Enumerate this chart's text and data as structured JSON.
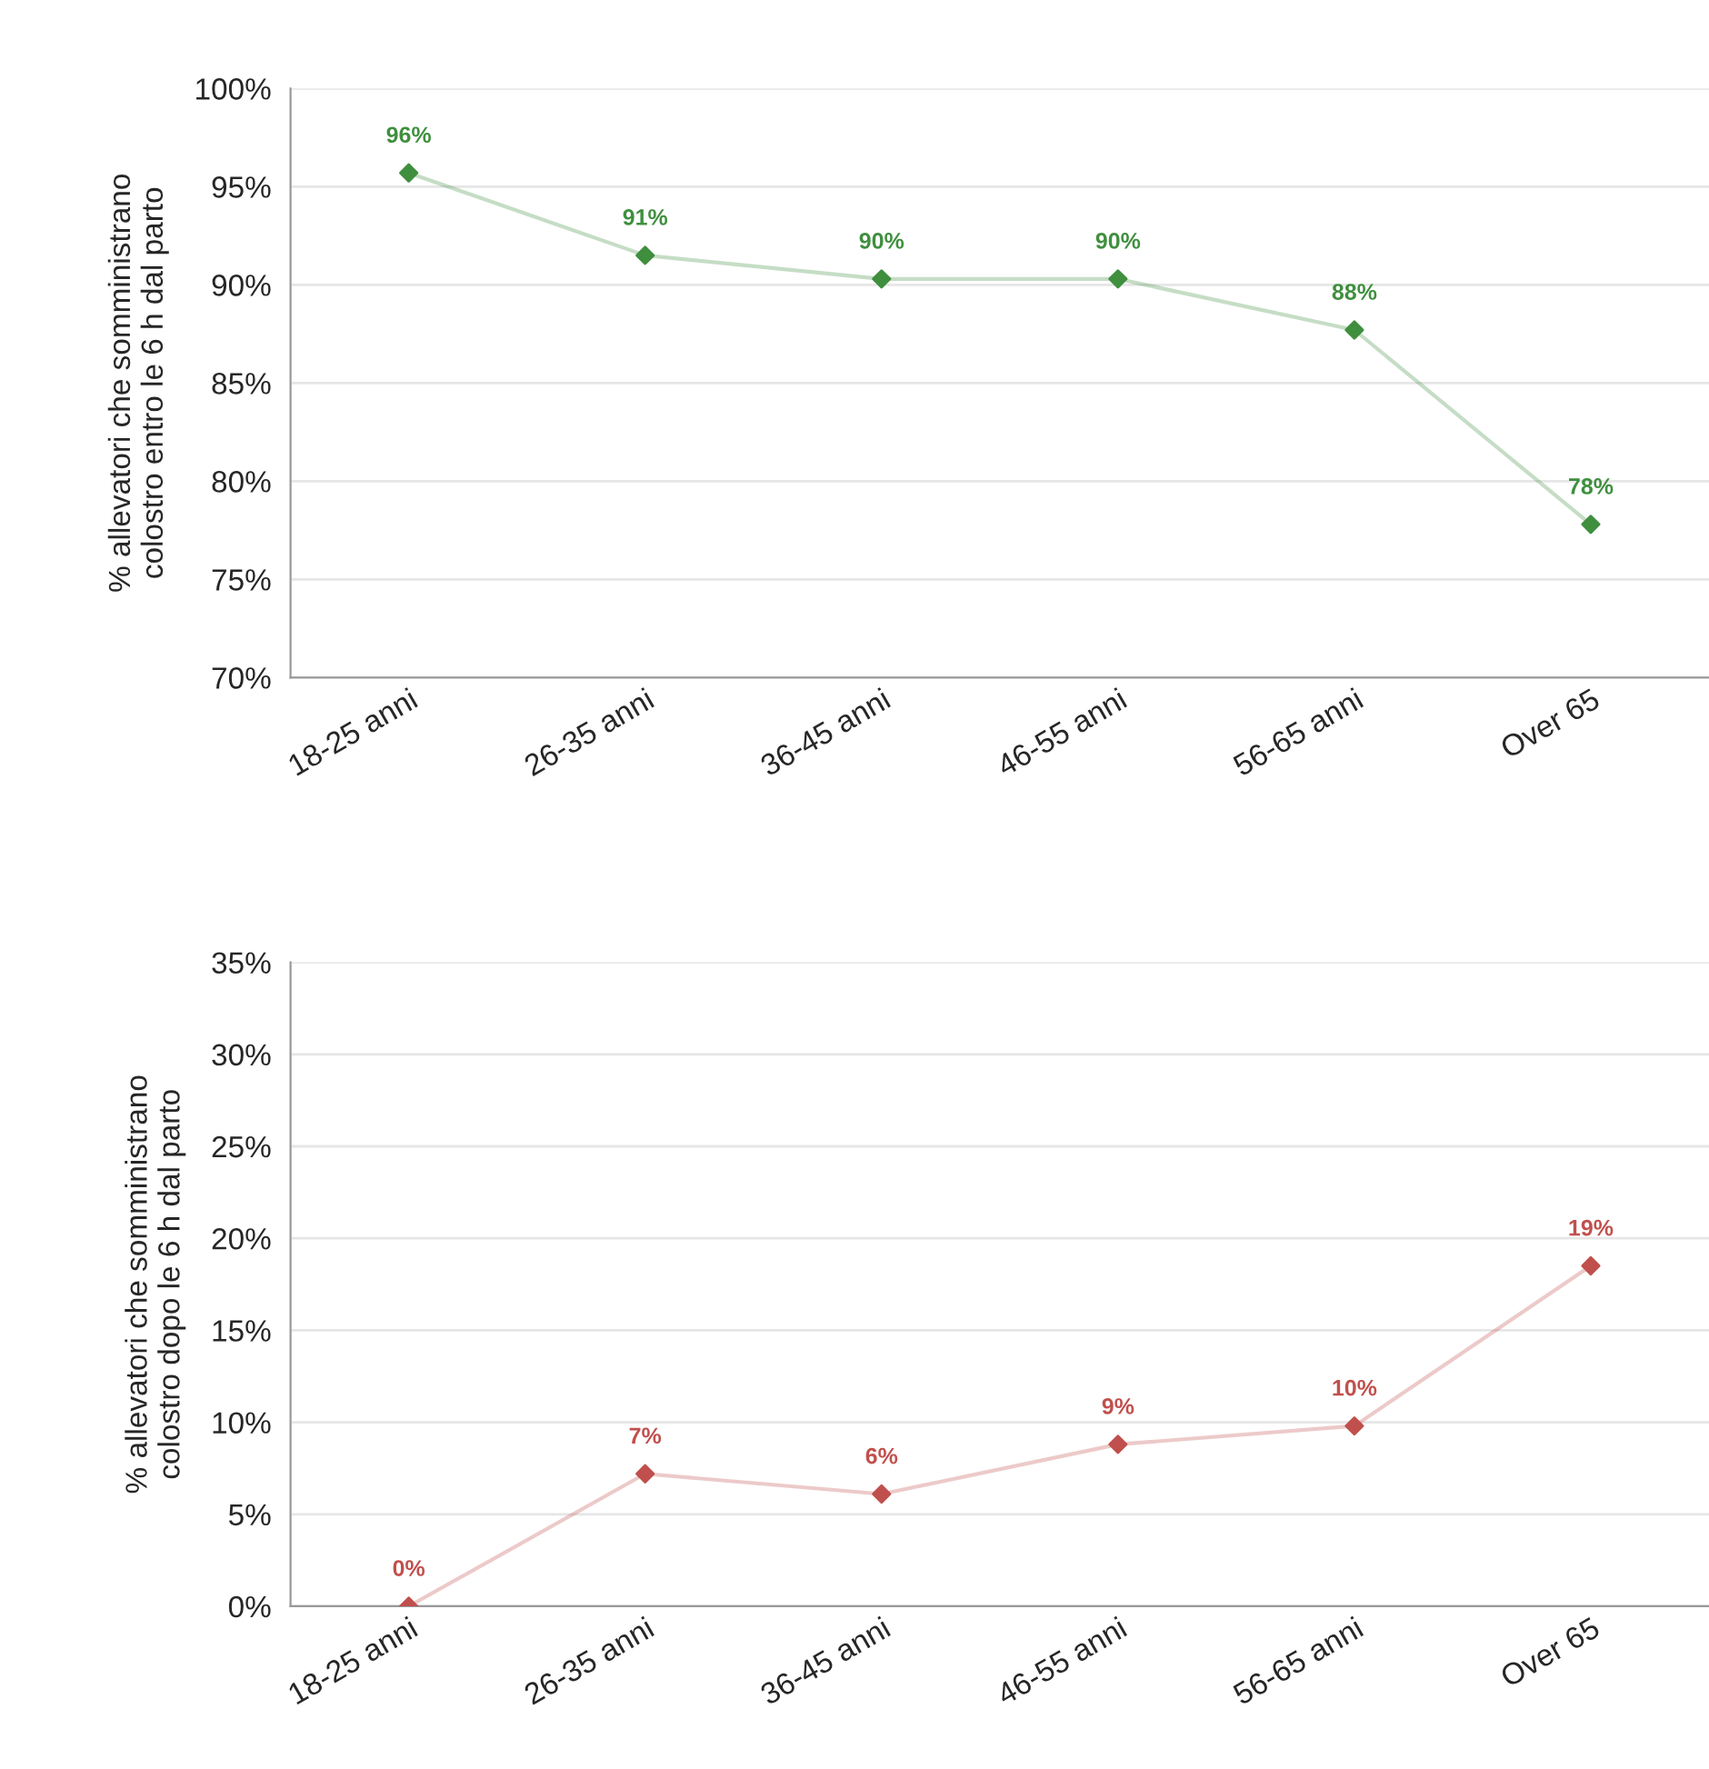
{
  "chart_data": [
    {
      "type": "line",
      "ylabel": "% allevatori che somministrano\ncolostro entro le 6 h dal parto",
      "categories": [
        "18-25 anni",
        "26-35 anni",
        "36-45 anni",
        "46-55 anni",
        "56-65 anni",
        "Over 65"
      ],
      "series": [
        {
          "color": "#3f8f3f",
          "values": [
            95.7,
            91.5,
            90.3,
            90.3,
            87.7,
            77.8
          ],
          "value_labels": [
            "96%",
            "91%",
            "90%",
            "90%",
            "88%",
            "78%"
          ]
        }
      ],
      "ylim": [
        70,
        100
      ],
      "yticks": [
        {
          "value": 70,
          "label": "70%"
        },
        {
          "value": 75,
          "label": "75%"
        },
        {
          "value": 80,
          "label": "80%"
        },
        {
          "value": 85,
          "label": "85%"
        },
        {
          "value": 90,
          "label": "90%"
        },
        {
          "value": 95,
          "label": "95%"
        },
        {
          "value": 100,
          "label": "100%"
        }
      ],
      "grid": "y",
      "marker": "diamond",
      "line_style": "solid"
    },
    {
      "type": "line",
      "ylabel": "% allevatori che somministrano\ncolostro dopo le 6 h dal parto",
      "categories": [
        "18-25 anni",
        "26-35 anni",
        "36-45 anni",
        "46-55 anni",
        "56-65 anni",
        "Over 65"
      ],
      "series": [
        {
          "color": "#c0504d",
          "values": [
            0,
            7.2,
            6.1,
            8.8,
            9.8,
            18.5
          ],
          "value_labels": [
            "0%",
            "7%",
            "6%",
            "9%",
            "10%",
            "19%"
          ]
        }
      ],
      "ylim": [
        0,
        35
      ],
      "yticks": [
        {
          "value": 0,
          "label": "0%"
        },
        {
          "value": 5,
          "label": "5%"
        },
        {
          "value": 10,
          "label": "10%"
        },
        {
          "value": 15,
          "label": "15%"
        },
        {
          "value": 20,
          "label": "20%"
        },
        {
          "value": 25,
          "label": "25%"
        },
        {
          "value": 30,
          "label": "30%"
        },
        {
          "value": 35,
          "label": "35%"
        }
      ],
      "grid": "y",
      "marker": "diamond",
      "line_style": "solid"
    }
  ]
}
